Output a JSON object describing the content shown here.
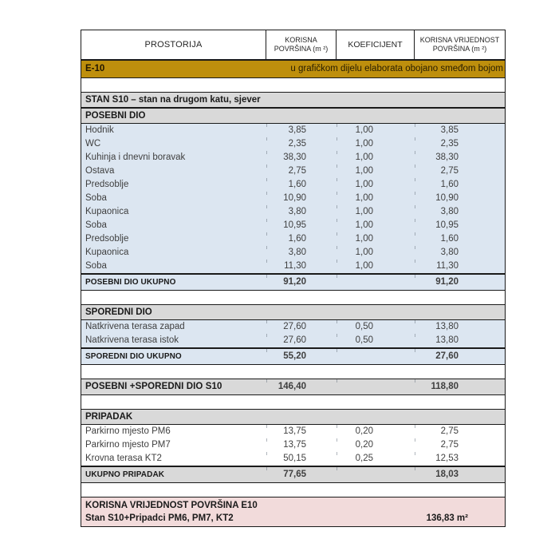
{
  "colors": {
    "banner_bg": "#BE8F0D",
    "section_bg": "#D9D9D9",
    "data_blue_bg": "#DCE6F1",
    "data_white_bg": "#FFFFFF",
    "footer_bg": "#F2DBDB",
    "border": "#1A1A1A",
    "text": "#3F3F3F"
  },
  "table": {
    "columns": [
      "PROSTORIJA",
      "KORISNA POVRŠINA (m ²)",
      "KOEFICIJENT",
      "KORISNA VRIJEDNOST POVRŠINA (m ²)"
    ],
    "banner": {
      "code": "E-10",
      "note": "u grafičkom dijelu elaborata obojano smeđom bojom"
    },
    "rows": [
      {
        "type": "spacer"
      },
      {
        "type": "section",
        "label": "STAN S10 – stan na drugom katu, sjever"
      },
      {
        "type": "section",
        "label": "POSEBNI DIO"
      },
      {
        "type": "data",
        "bg": "blue",
        "name": "Hodnik",
        "v1": "3,85",
        "v2": "1,00",
        "v3": "3,85"
      },
      {
        "type": "data",
        "bg": "blue",
        "name": "WC",
        "v1": "2,35",
        "v2": "1,00",
        "v3": "2,35"
      },
      {
        "type": "data",
        "bg": "blue",
        "name": "Kuhinja i dnevni boravak",
        "v1": "38,30",
        "v2": "1,00",
        "v3": "38,30"
      },
      {
        "type": "data",
        "bg": "blue",
        "name": "Ostava",
        "v1": "2,75",
        "v2": "1,00",
        "v3": "2,75"
      },
      {
        "type": "data",
        "bg": "blue",
        "name": "Predsoblje",
        "v1": "1,60",
        "v2": "1,00",
        "v3": "1,60"
      },
      {
        "type": "data",
        "bg": "blue",
        "name": "Soba",
        "v1": "10,90",
        "v2": "1,00",
        "v3": "10,90"
      },
      {
        "type": "data",
        "bg": "blue",
        "name": "Kupaonica",
        "v1": "3,80",
        "v2": "1,00",
        "v3": "3,80"
      },
      {
        "type": "data",
        "bg": "blue",
        "name": "Soba",
        "v1": "10,95",
        "v2": "1,00",
        "v3": "10,95"
      },
      {
        "type": "data",
        "bg": "blue",
        "name": "Predsoblje",
        "v1": "1,60",
        "v2": "1,00",
        "v3": "1,60"
      },
      {
        "type": "data",
        "bg": "blue",
        "name": "Kupaonica",
        "v1": "3,80",
        "v2": "1,00",
        "v3": "3,80"
      },
      {
        "type": "data",
        "bg": "blue",
        "name": "Soba",
        "v1": "11,30",
        "v2": "1,00",
        "v3": "11,30"
      },
      {
        "type": "total",
        "bg": "blue",
        "label": "POSEBNI DIO UKUPNO",
        "v1": "91,20",
        "v3": "91,20"
      },
      {
        "type": "spacer"
      },
      {
        "type": "section",
        "label": "SPOREDNI DIO"
      },
      {
        "type": "data",
        "bg": "blue",
        "name": "Natkrivena terasa zapad",
        "v1": "27,60",
        "v2": "0,50",
        "v3": "13,80"
      },
      {
        "type": "data",
        "bg": "blue",
        "name": "Natkrivena terasa istok",
        "v1": "27,60",
        "v2": "0,50",
        "v3": "13,80"
      },
      {
        "type": "total",
        "bg": "blue",
        "label": "SPOREDNI DIO UKUPNO",
        "v1": "55,20",
        "v3": "27,60"
      },
      {
        "type": "spacer"
      },
      {
        "type": "grand",
        "bg": "gray",
        "label": "POSEBNI +SPOREDNI DIO S10",
        "v1": "146,40",
        "v3": "118,80"
      },
      {
        "type": "spacer"
      },
      {
        "type": "section",
        "label": "PRIPADAK"
      },
      {
        "type": "data",
        "bg": "white",
        "name": "Parkirno mjesto PM6",
        "v1": "13,75",
        "v2": "0,20",
        "v3": "2,75"
      },
      {
        "type": "data",
        "bg": "white",
        "name": "Parkirno mjesto PM7",
        "v1": "13,75",
        "v2": "0,20",
        "v3": "2,75"
      },
      {
        "type": "data",
        "bg": "white",
        "name": "Krovna terasa KT2",
        "v1": "50,15",
        "v2": "0,25",
        "v3": "12,53"
      },
      {
        "type": "total",
        "bg": "gray",
        "label": "UKUPNO PRIPADAK",
        "v1": "77,65",
        "v3": "18,03"
      },
      {
        "type": "spacer"
      }
    ],
    "footer": {
      "line1": "KORISNA VRIJEDNOST POVRŠINA E10",
      "line2": "Stan S10+Pripadci PM6, PM7, KT2",
      "value": "136,83 m²"
    }
  }
}
